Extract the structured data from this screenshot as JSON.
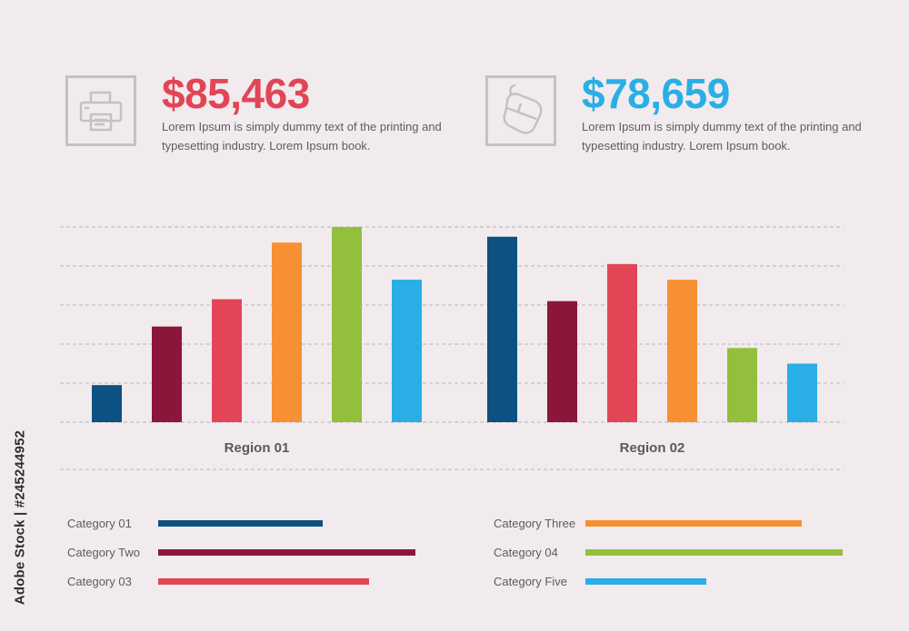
{
  "stats": [
    {
      "value": "$85,463",
      "color": "#e24555",
      "icon": "printer-icon",
      "description": "Lorem Ipsum is simply dummy text of the printing and typesetting industry. Lorem Ipsum book."
    },
    {
      "value": "$78,659",
      "color": "#29aee5",
      "icon": "mouse-icon",
      "description": "Lorem Ipsum is simply dummy text of the printing and typesetting industry. Lorem Ipsum book."
    }
  ],
  "chart_data": [
    {
      "type": "bar",
      "groups": [
        "Region 01",
        "Region 02"
      ],
      "series": [
        {
          "values": [
            19,
            95
          ]
        },
        {
          "values": [
            49,
            62
          ]
        },
        {
          "values": [
            63,
            81
          ]
        },
        {
          "values": [
            92,
            73
          ]
        },
        {
          "values": [
            100,
            38
          ]
        },
        {
          "values": [
            73,
            30
          ]
        }
      ],
      "colors": [
        "#0c5182",
        "#8c1639",
        "#e24555",
        "#f79033",
        "#93bf3d",
        "#29aee5"
      ],
      "ylim": [
        0,
        100
      ],
      "grid": true
    },
    {
      "type": "bar",
      "orientation": "horizontal",
      "categories": [
        "Category 01",
        "Category Two",
        "Category 03",
        "Category Three",
        "Category 04",
        "Category Five"
      ],
      "values": [
        64,
        100,
        82,
        84,
        100,
        47
      ],
      "colors": [
        "#0c5182",
        "#8c1639",
        "#e24555",
        "#f79033",
        "#93bf3d",
        "#29aee5"
      ],
      "xlim": [
        0,
        100
      ]
    }
  ],
  "watermark": "Adobe Stock | #245244952"
}
